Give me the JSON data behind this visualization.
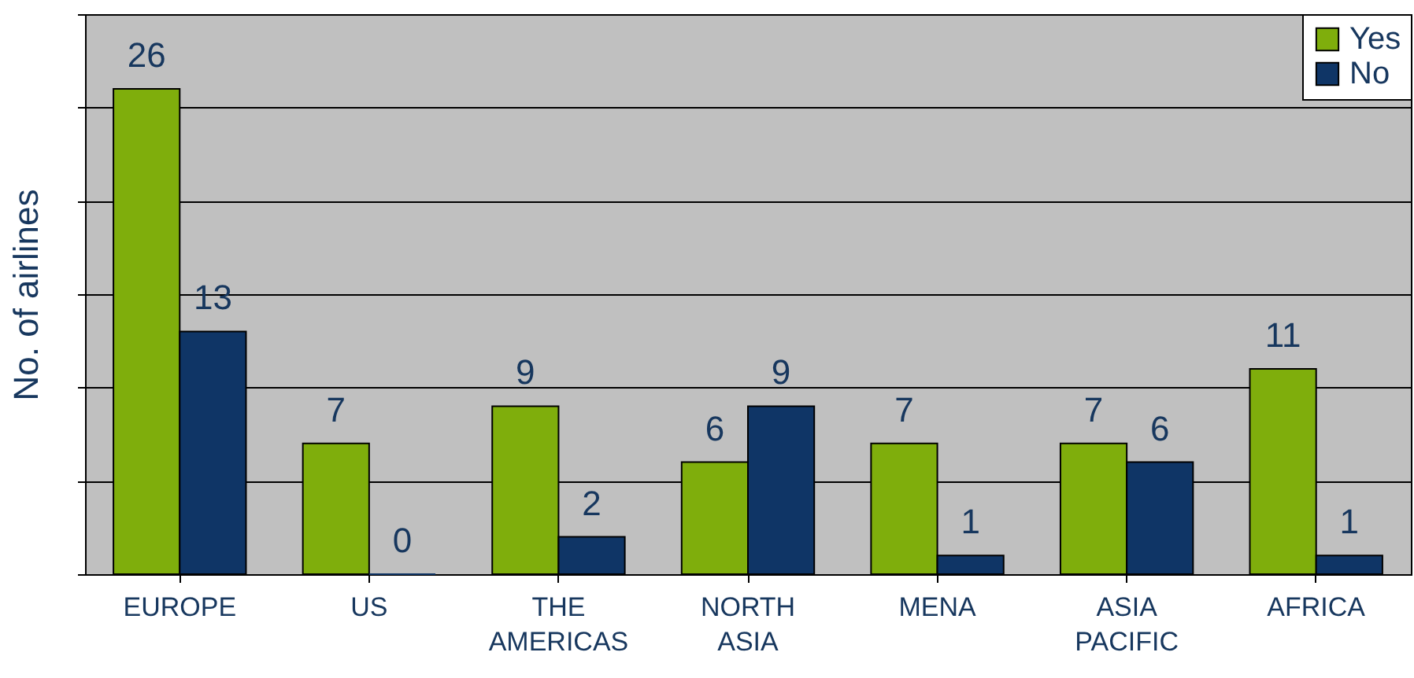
{
  "chart_data": {
    "type": "bar",
    "ylabel": "No. of airlines",
    "categories": [
      "EUROPE",
      "US",
      "THE AMERICAS",
      "NORTH ASIA",
      "MENA",
      "ASIA PACIFIC",
      "AFRICA"
    ],
    "series": [
      {
        "name": "Yes",
        "color": "#7fae0c",
        "values": [
          26,
          7,
          9,
          6,
          7,
          7,
          11
        ]
      },
      {
        "name": "No",
        "color": "#0f3566",
        "values": [
          13,
          0,
          2,
          9,
          1,
          6,
          1
        ]
      }
    ],
    "ylim": [
      0,
      30
    ],
    "yticks": [
      {
        "value": 0,
        "label": null
      },
      {
        "value": 5,
        "label": null
      },
      {
        "value": 10,
        "label": null
      },
      {
        "value": 15,
        "label": null
      },
      {
        "value": 20,
        "label": null
      },
      {
        "value": 25,
        "label": null
      },
      {
        "value": 30,
        "label": null
      }
    ],
    "tick_labels": "x",
    "grid": "y",
    "legend": "top right",
    "data_labels": true
  }
}
